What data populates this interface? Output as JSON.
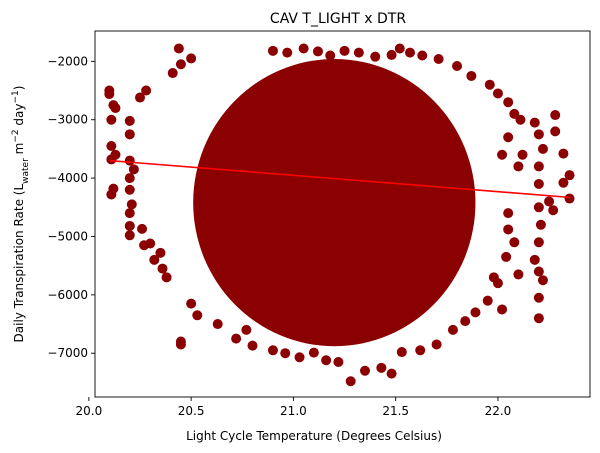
{
  "chart_data": {
    "type": "scatter",
    "title": "CAV T_LIGHT x DTR",
    "xlabel": "Light Cycle Temperature (Degrees Celsius)",
    "ylabel": {
      "prefix": "Daily Transpiration Rate (L",
      "sub": "water",
      "mid1": " m",
      "sup1": "−2",
      "mid2": " day",
      "sup2": "−1",
      "suffix": ")"
    },
    "xlim": [
      20.03,
      22.45
    ],
    "ylim": [
      -7750,
      -1480
    ],
    "xticks": [
      20.0,
      20.5,
      21.0,
      21.5,
      22.0
    ],
    "xtick_labels": [
      "20.0",
      "20.5",
      "21.0",
      "21.5",
      "22.0"
    ],
    "yticks": [
      -7000,
      -6000,
      -5000,
      -4000,
      -3000,
      -2000
    ],
    "ytick_labels": [
      "−7000",
      "−6000",
      "−5000",
      "−4000",
      "−3000",
      "−2000"
    ],
    "grid": false,
    "legend": "none",
    "colors": {
      "points": "#8b0000",
      "trend": "#ff0000"
    },
    "trend_line": {
      "x": [
        20.1,
        22.35
      ],
      "y": [
        -3700,
        -4330
      ]
    },
    "cloud": {
      "center": [
        21.2,
        -4420
      ],
      "radius": [
        0.69,
        2460
      ]
    },
    "series": [
      {
        "points": [
          [
            20.1,
            -2500
          ],
          [
            20.1,
            -2560
          ],
          [
            20.12,
            -2750
          ],
          [
            20.13,
            -2800
          ],
          [
            20.11,
            -3000
          ],
          [
            20.11,
            -3450
          ],
          [
            20.11,
            -3680
          ],
          [
            20.13,
            -3600
          ],
          [
            20.11,
            -4280
          ],
          [
            20.12,
            -4180
          ],
          [
            20.2,
            -3020
          ],
          [
            20.2,
            -3250
          ],
          [
            20.2,
            -3700
          ],
          [
            20.22,
            -3850
          ],
          [
            20.2,
            -4000
          ],
          [
            20.2,
            -4200
          ],
          [
            20.21,
            -4450
          ],
          [
            20.2,
            -4600
          ],
          [
            20.2,
            -4820
          ],
          [
            20.2,
            -4980
          ],
          [
            20.25,
            -2620
          ],
          [
            20.28,
            -2500
          ],
          [
            20.26,
            -4870
          ],
          [
            20.27,
            -5150
          ],
          [
            20.3,
            -5120
          ],
          [
            20.32,
            -5400
          ],
          [
            20.35,
            -5280
          ],
          [
            20.36,
            -5550
          ],
          [
            20.38,
            -5700
          ],
          [
            20.44,
            -1780
          ],
          [
            20.45,
            -2050
          ],
          [
            20.5,
            -1950
          ],
          [
            20.41,
            -2200
          ],
          [
            20.45,
            -6800
          ],
          [
            20.45,
            -6850
          ],
          [
            20.5,
            -6150
          ],
          [
            20.53,
            -6350
          ],
          [
            20.63,
            -6500
          ],
          [
            20.72,
            -6750
          ],
          [
            20.77,
            -6600
          ],
          [
            20.8,
            -6870
          ],
          [
            20.9,
            -6950
          ],
          [
            20.96,
            -7000
          ],
          [
            21.03,
            -7070
          ],
          [
            21.1,
            -6990
          ],
          [
            21.16,
            -7120
          ],
          [
            21.22,
            -7150
          ],
          [
            21.28,
            -7480
          ],
          [
            21.35,
            -7300
          ],
          [
            21.43,
            -7250
          ],
          [
            21.48,
            -7350
          ],
          [
            21.53,
            -6980
          ],
          [
            21.62,
            -6950
          ],
          [
            21.7,
            -6850
          ],
          [
            21.78,
            -6600
          ],
          [
            21.84,
            -6450
          ],
          [
            21.89,
            -6300
          ],
          [
            21.95,
            -6100
          ],
          [
            20.9,
            -1820
          ],
          [
            20.97,
            -1850
          ],
          [
            21.05,
            -1780
          ],
          [
            21.12,
            -1830
          ],
          [
            21.18,
            -1900
          ],
          [
            21.25,
            -1820
          ],
          [
            21.32,
            -1850
          ],
          [
            21.4,
            -1920
          ],
          [
            21.48,
            -1890
          ],
          [
            21.52,
            -1780
          ],
          [
            21.57,
            -1850
          ],
          [
            21.63,
            -1900
          ],
          [
            21.71,
            -1960
          ],
          [
            21.8,
            -2080
          ],
          [
            21.87,
            -2250
          ],
          [
            21.96,
            -2400
          ],
          [
            22.0,
            -2550
          ],
          [
            22.05,
            -2700
          ],
          [
            22.08,
            -2900
          ],
          [
            22.11,
            -3000
          ],
          [
            22.05,
            -3300
          ],
          [
            22.02,
            -3600
          ],
          [
            22.1,
            -3800
          ],
          [
            22.12,
            -3600
          ],
          [
            22.18,
            -3050
          ],
          [
            22.2,
            -3250
          ],
          [
            22.22,
            -3500
          ],
          [
            22.2,
            -3800
          ],
          [
            22.2,
            -4100
          ],
          [
            22.2,
            -4500
          ],
          [
            22.21,
            -4800
          ],
          [
            22.2,
            -5100
          ],
          [
            22.18,
            -5400
          ],
          [
            22.2,
            -5600
          ],
          [
            22.22,
            -5750
          ],
          [
            22.2,
            -6050
          ],
          [
            22.2,
            -6400
          ],
          [
            22.28,
            -2920
          ],
          [
            22.28,
            -3200
          ],
          [
            22.32,
            -3580
          ],
          [
            22.35,
            -3950
          ],
          [
            22.32,
            -4080
          ],
          [
            22.35,
            -4350
          ],
          [
            22.27,
            -4550
          ],
          [
            22.25,
            -4400
          ],
          [
            22.05,
            -4880
          ],
          [
            22.08,
            -5100
          ],
          [
            22.04,
            -5350
          ],
          [
            22.1,
            -5650
          ],
          [
            22.0,
            -5800
          ],
          [
            22.02,
            -6250
          ],
          [
            21.98,
            -5700
          ],
          [
            22.05,
            -4600
          ]
        ]
      }
    ]
  }
}
